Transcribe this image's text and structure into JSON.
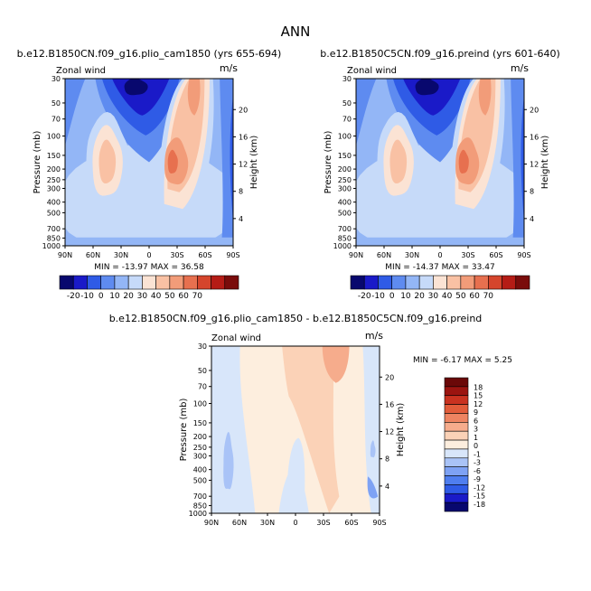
{
  "figure": {
    "season": "ANN",
    "colors": {
      "wind_scale": [
        "#08086e",
        "#1a1ac8",
        "#2f5be6",
        "#5e8bf0",
        "#93b6f6",
        "#c6daf9",
        "#fbe3d4",
        "#f9c1a4",
        "#f29c79",
        "#e7704f",
        "#d5452c",
        "#b51c16",
        "#7a0c0b"
      ],
      "diff_scale": [
        "#08086e",
        "#1a1ac8",
        "#2f5be6",
        "#4f7eef",
        "#7ea2f4",
        "#a9c3f7",
        "#d8e6fa",
        "#fdeede",
        "#fbd2b7",
        "#f6ac8c",
        "#ee8461",
        "#e25c3a",
        "#c93220",
        "#9b1410",
        "#6a0808"
      ]
    }
  },
  "chart_data": [
    {
      "type": "contour",
      "title": "b.e12.B1850CN.f09_g16.plio_cam1850 (yrs 655-694)",
      "variable_label": "Zonal wind",
      "units": "m/s",
      "xlabel": "",
      "ylabel": "Pressure (mb)",
      "y2label": "Height (km)",
      "x_ticks": [
        "90N",
        "60N",
        "30N",
        "0",
        "30S",
        "60S",
        "90S"
      ],
      "y_ticks": [
        "30",
        "50",
        "70",
        "100",
        "150",
        "200",
        "250",
        "300",
        "400",
        "500",
        "700",
        "850",
        "1000"
      ],
      "y2_ticks": [
        "20",
        "16",
        "12",
        "8",
        "4"
      ],
      "min": "-13.97",
      "max": "36.58",
      "stats_text": "MIN = -13.97   MAX =  36.58",
      "levels": [
        "-20",
        "-10",
        "0",
        "10",
        "20",
        "30",
        "40",
        "50",
        "60",
        "70"
      ]
    },
    {
      "type": "contour",
      "title": "b.e12.B1850C5CN.f09_g16.preind (yrs 601-640)",
      "variable_label": "Zonal wind",
      "units": "m/s",
      "xlabel": "",
      "ylabel": "Pressure (mb)",
      "y2label": "Height (km)",
      "x_ticks": [
        "90N",
        "60N",
        "30N",
        "0",
        "30S",
        "60S",
        "90S"
      ],
      "y_ticks": [
        "30",
        "50",
        "70",
        "100",
        "150",
        "200",
        "250",
        "300",
        "400",
        "500",
        "700",
        "850",
        "1000"
      ],
      "y2_ticks": [
        "20",
        "16",
        "12",
        "8",
        "4"
      ],
      "min": "-14.37",
      "max": "33.47",
      "stats_text": "MIN = -14.37   MAX =  33.47",
      "levels": [
        "-20",
        "-10",
        "0",
        "10",
        "20",
        "30",
        "40",
        "50",
        "60",
        "70"
      ]
    },
    {
      "type": "contour",
      "title": "b.e12.B1850CN.f09_g16.plio_cam1850 - b.e12.B1850C5CN.f09_g16.preind",
      "variable_label": "Zonal wind",
      "units": "m/s",
      "xlabel": "",
      "ylabel": "Pressure (mb)",
      "y2label": "Height (km)",
      "x_ticks": [
        "90N",
        "60N",
        "30N",
        "0",
        "30S",
        "60S",
        "90S"
      ],
      "y_ticks": [
        "30",
        "50",
        "70",
        "100",
        "150",
        "200",
        "250",
        "300",
        "400",
        "500",
        "700",
        "850",
        "1000"
      ],
      "y2_ticks": [
        "20",
        "16",
        "12",
        "8",
        "4"
      ],
      "min": "-6.17",
      "max": "5.25",
      "stats_text": "MIN =  -6.17   MAX =   5.25",
      "levels": [
        "18",
        "15",
        "12",
        "9",
        "6",
        "3",
        "1",
        "0",
        "-1",
        "-3",
        "-6",
        "-9",
        "-12",
        "-15",
        "-18"
      ]
    }
  ]
}
